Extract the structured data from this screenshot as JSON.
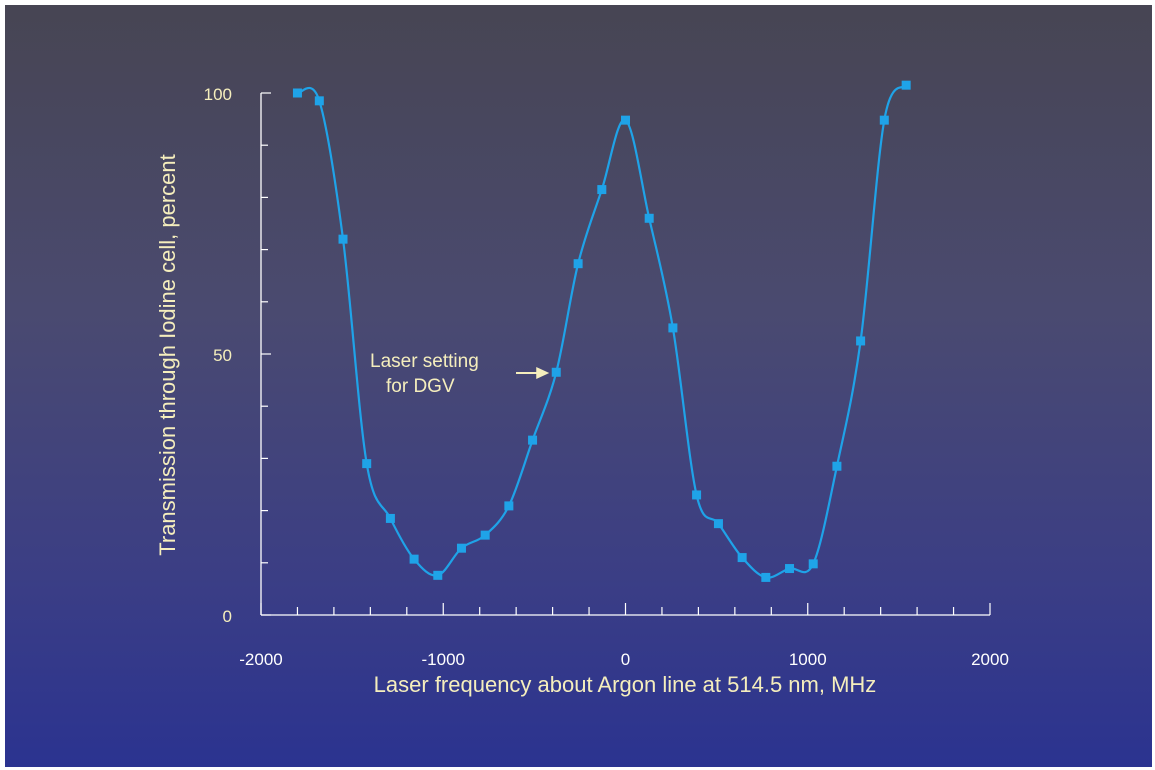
{
  "chart_data": {
    "type": "line",
    "title": "",
    "xlabel": "Laser frequency about Argon line at 514.5 nm, MHz",
    "ylabel": "Transmission through Iodine cell, percent",
    "xlim": [
      -2000,
      2000
    ],
    "ylim": [
      0,
      100
    ],
    "x_ticks": [
      -2000,
      -1000,
      0,
      1000,
      2000
    ],
    "x_tick_labels": [
      "-2000",
      "-1000",
      "0",
      "1000",
      "2000"
    ],
    "y_ticks": [
      0,
      50,
      100
    ],
    "y_tick_labels": [
      "0",
      "50",
      "100"
    ],
    "grid": false,
    "series": [
      {
        "x": [
          -1800,
          -1680,
          -1550,
          -1420,
          -1290,
          -1160,
          -1030,
          -900,
          -770,
          -640,
          -510,
          -380,
          -260,
          -130,
          0,
          130,
          260,
          390,
          510,
          640,
          770,
          900,
          1030,
          1160,
          1290,
          1420,
          1540
        ],
        "y": [
          100,
          98.5,
          72,
          29,
          18.5,
          10.7,
          7.6,
          12.8,
          15.3,
          20.9,
          33.5,
          46.5,
          67.3,
          81.5,
          94.8,
          76,
          55,
          23,
          17.5,
          11,
          7.2,
          8.9,
          9.8,
          28.5,
          52.5,
          94.8,
          101.5
        ],
        "color": "#1fa3e8"
      }
    ],
    "annotations": [
      {
        "text_line1": "Laser setting",
        "text_line2": "for DGV",
        "points_to_x": -380,
        "points_to_y": 46.5
      }
    ],
    "colors": {
      "line": "#1fa3e8",
      "marker": "#1fa3e8",
      "text": "#f5eebd",
      "axis": "#ffffff"
    }
  }
}
